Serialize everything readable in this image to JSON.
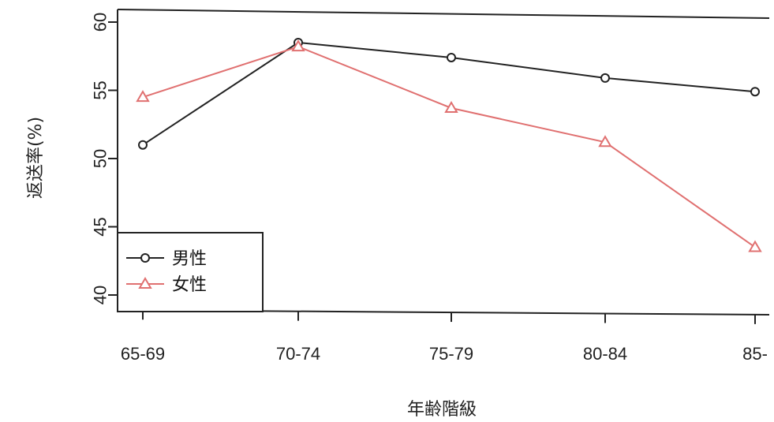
{
  "chart_data": {
    "type": "line",
    "categories": [
      "65-69",
      "70-74",
      "75-79",
      "80-84",
      "85-"
    ],
    "series": [
      {
        "name": "男性",
        "values": [
          51.0,
          58.5,
          57.4,
          55.9,
          54.9
        ],
        "color": "#222222",
        "marker": "circle"
      },
      {
        "name": "女性",
        "values": [
          54.5,
          58.2,
          53.7,
          51.2,
          43.5
        ],
        "color": "#e07070",
        "marker": "triangle"
      }
    ],
    "title": "",
    "xlabel": "年齢階級",
    "ylabel": "返送率(%)",
    "ylim": [
      40,
      60
    ],
    "yticks": [
      40,
      45,
      50,
      55,
      60
    ],
    "grid": false,
    "legend_position": "bottom-left"
  }
}
